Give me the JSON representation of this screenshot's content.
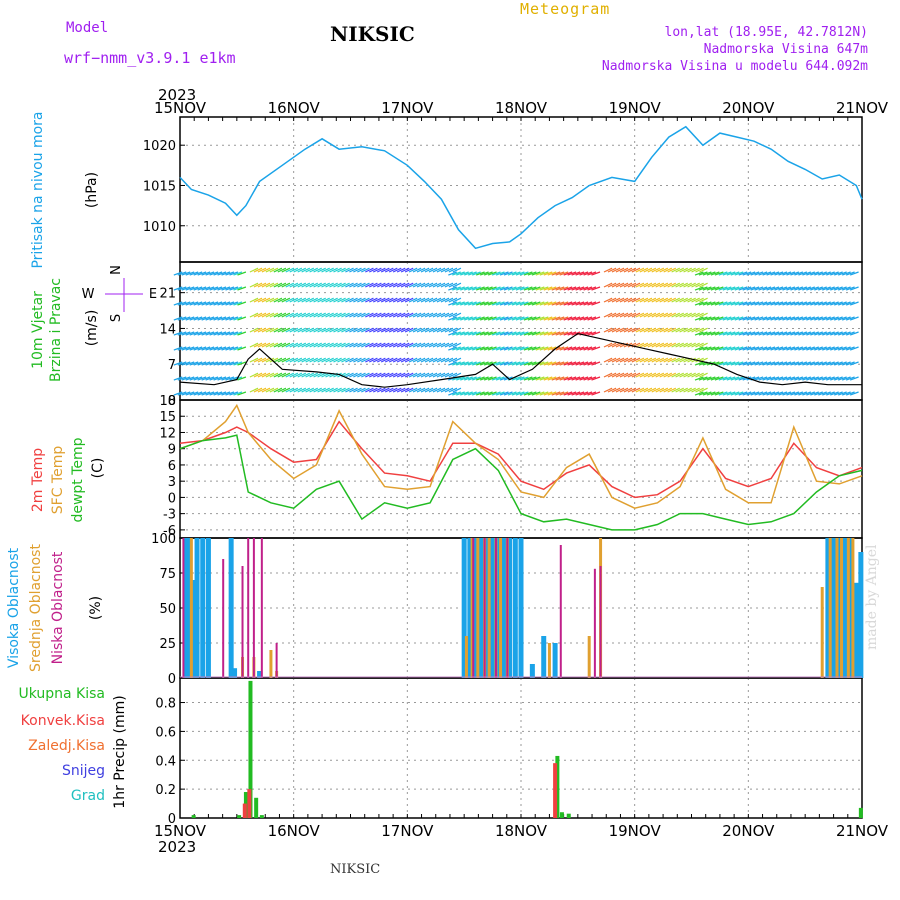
{
  "header": {
    "station": "NIKSIC",
    "model_label": "Model",
    "model_name": "wrf−nmm_v3.9.1  e1km",
    "meteogram_label": "Meteogram",
    "lonlat": "lon,lat (18.95E, 42.7812N)",
    "altitude": "Nadmorska Visina 647m",
    "model_altitude": "Nadmorska Visina u modelu 644.092m",
    "credit": "made by Angel",
    "bottom_station": "NIKSIC"
  },
  "time_axis": {
    "year": "2023",
    "labels": [
      "15NOV",
      "16NOV",
      "17NOV",
      "18NOV",
      "19NOV",
      "20NOV",
      "21NOV"
    ]
  },
  "colors": {
    "pressure": "#1aa3e8",
    "temp2m": "#f04040",
    "sfctemp": "#e0a030",
    "dewpoint": "#22bb22",
    "cloud_high": "#1aa3e8",
    "cloud_mid": "#e0a030",
    "cloud_low": "#c0208a",
    "precip_total": "#22bb22",
    "precip_conv": "#f04040",
    "precip_frozen": "#f07030",
    "precip_snow": "#4040e0",
    "precip_hail": "#20c0c0"
  },
  "chart_data": [
    {
      "type": "line",
      "ylabel": "Pritisak na nivou mora",
      "unit": "(hPa)",
      "yticks": [
        1010,
        1015,
        1020
      ],
      "ylim": [
        1005.5,
        1023.5
      ],
      "x_days": [
        0,
        0.1,
        0.25,
        0.4,
        0.5,
        0.58,
        0.7,
        0.9,
        1.1,
        1.25,
        1.4,
        1.6,
        1.8,
        2.0,
        2.15,
        2.3,
        2.45,
        2.6,
        2.75,
        2.9,
        3.0,
        3.15,
        3.3,
        3.45,
        3.6,
        3.8,
        4.0,
        4.15,
        4.3,
        4.45,
        4.6,
        4.75,
        4.9,
        5.05,
        5.2,
        5.35,
        5.5,
        5.65,
        5.8,
        5.95,
        6.0
      ],
      "values": [
        1016,
        1014.5,
        1013.8,
        1012.8,
        1011.3,
        1012.5,
        1015.5,
        1017.5,
        1019.5,
        1020.8,
        1019.5,
        1019.8,
        1019.3,
        1017.5,
        1015.5,
        1013.3,
        1009.5,
        1007.2,
        1007.8,
        1008,
        1009,
        1011,
        1012.5,
        1013.5,
        1015,
        1016,
        1015.5,
        1018.5,
        1021,
        1022.3,
        1020,
        1021.5,
        1021,
        1020.5,
        1019.5,
        1018,
        1017,
        1015.8,
        1016.3,
        1015,
        1013.3
      ],
      "series": [
        {
          "name": "Pritisak na nivou mora"
        }
      ]
    },
    {
      "type": "line",
      "ylabel": "10m Vjetar Brzina i Pravac",
      "unit": "(m/s)",
      "yticks": [
        0,
        7,
        14,
        21
      ],
      "ylim": [
        0,
        27
      ],
      "compass": [
        "N",
        "S",
        "W",
        "E"
      ],
      "x_days": [
        0,
        0.3,
        0.5,
        0.6,
        0.7,
        0.9,
        1.2,
        1.4,
        1.6,
        1.8,
        2.0,
        2.3,
        2.6,
        2.75,
        2.9,
        3.1,
        3.3,
        3.5,
        3.7,
        3.9,
        4.1,
        4.3,
        4.5,
        4.7,
        4.9,
        5.1,
        5.3,
        5.5,
        5.7,
        5.9,
        6.0
      ],
      "values": [
        3.5,
        3,
        4,
        8,
        10,
        6,
        5.5,
        5,
        3,
        2.5,
        3,
        4,
        5,
        7,
        4,
        6,
        10,
        13,
        12,
        11,
        10,
        9,
        8,
        7,
        5,
        3.5,
        3,
        3.5,
        3,
        3,
        3
      ],
      "series": [
        {
          "name": "10m Vjetar"
        }
      ]
    },
    {
      "type": "line",
      "ylabel": "2m Temp / SFC Temp / dewpt Temp",
      "unit": "(C)",
      "yticks": [
        -6,
        -3,
        0,
        3,
        6,
        9,
        12,
        15,
        18
      ],
      "ylim": [
        -7.5,
        18
      ],
      "x_days": [
        0,
        0.2,
        0.4,
        0.5,
        0.6,
        0.8,
        1.0,
        1.2,
        1.4,
        1.6,
        1.8,
        2.0,
        2.2,
        2.4,
        2.6,
        2.8,
        3.0,
        3.2,
        3.4,
        3.6,
        3.8,
        4.0,
        4.2,
        4.4,
        4.6,
        4.8,
        5.0,
        5.2,
        5.4,
        5.6,
        5.8,
        6.0
      ],
      "series": [
        {
          "name": "2m Temp",
          "values": [
            10,
            10.5,
            12,
            13,
            12,
            9,
            6.5,
            7,
            14,
            9,
            4.5,
            4,
            3,
            10,
            10,
            8,
            3,
            1.5,
            4.5,
            6,
            2,
            0,
            0.5,
            3,
            9,
            3.5,
            2,
            3.5,
            10,
            5.5,
            4,
            5.5
          ]
        },
        {
          "name": "SFC Temp",
          "values": [
            9,
            10.5,
            14,
            17,
            12,
            7,
            3.5,
            6,
            16,
            8,
            2,
            1.5,
            2,
            14,
            10,
            7,
            1,
            0,
            5.5,
            8,
            0,
            -2,
            -1,
            2,
            11,
            1.5,
            -1,
            -1,
            13,
            3,
            2.5,
            4
          ]
        },
        {
          "name": "dewpt Temp",
          "values": [
            9,
            10.5,
            11,
            11.5,
            1,
            -1,
            -2,
            1.5,
            3,
            -4,
            -1,
            -2,
            -1,
            7,
            9,
            5,
            -3,
            -4.5,
            -4,
            -5,
            -6,
            -6,
            -5,
            -3,
            -3,
            -4,
            -5,
            -4.5,
            -3,
            1,
            4,
            5
          ]
        }
      ]
    },
    {
      "type": "bar",
      "ylabel": "Visoka Oblacnost / Srednja Oblacnost / Niska Oblacnost",
      "unit": "(%)",
      "yticks": [
        0,
        25,
        50,
        75,
        100
      ],
      "ylim": [
        0,
        100
      ],
      "series": [
        {
          "name": "Visoka Oblacnost",
          "x_days": [
            0.05,
            0.08,
            0.12,
            0.15,
            0.2,
            0.25,
            0.45,
            0.48,
            0.7,
            2.5,
            2.55,
            2.6,
            2.65,
            2.7,
            2.75,
            2.8,
            2.85,
            2.9,
            2.95,
            3.0,
            3.1,
            3.2,
            3.3,
            5.7,
            5.75,
            5.8,
            5.85,
            5.9,
            5.95,
            5.99
          ],
          "values": [
            100,
            100,
            70,
            100,
            100,
            100,
            100,
            7,
            5,
            100,
            100,
            100,
            100,
            100,
            100,
            100,
            100,
            100,
            100,
            100,
            10,
            30,
            25,
            100,
            100,
            100,
            100,
            100,
            68,
            90
          ]
        },
        {
          "name": "Srednja Oblacnost",
          "x_days": [
            0.1,
            0.55,
            0.65,
            0.8,
            0.85,
            2.52,
            2.57,
            2.62,
            2.68,
            2.72,
            2.78,
            2.82,
            2.88,
            3.25,
            3.6,
            3.7,
            5.65,
            5.72,
            5.78,
            5.82,
            5.88,
            5.92
          ],
          "values": [
            100,
            15,
            15,
            20,
            5,
            30,
            100,
            100,
            100,
            100,
            100,
            100,
            100,
            25,
            30,
            100,
            65,
            100,
            100,
            100,
            100,
            100
          ]
        },
        {
          "name": "Niska Oblacnost",
          "x_days": [
            0.03,
            0.38,
            0.55,
            0.6,
            0.65,
            0.72,
            0.85,
            2.58,
            2.68,
            2.78,
            2.88,
            3.35,
            3.65,
            3.7
          ],
          "values": [
            100,
            85,
            80,
            100,
            100,
            100,
            25,
            100,
            100,
            100,
            100,
            95,
            78,
            80
          ]
        }
      ]
    },
    {
      "type": "bar",
      "ylabel": "1hr Precip",
      "unit": "(mm)",
      "yticks": [
        0,
        0.2,
        0.4,
        0.6,
        0.8
      ],
      "ylim": [
        0,
        0.97
      ],
      "series": [
        {
          "name": "Ukupna Kisa",
          "x_days": [
            0.12,
            0.52,
            0.58,
            0.62,
            0.67,
            0.72,
            3.32,
            3.36,
            3.42,
            5.99
          ],
          "values": [
            0.02,
            0.02,
            0.18,
            0.95,
            0.14,
            0.02,
            0.43,
            0.04,
            0.03,
            0.07
          ]
        },
        {
          "name": "Konvek.Kisa",
          "x_days": [
            0.57,
            0.61,
            3.3
          ],
          "values": [
            0.1,
            0.2,
            0.38
          ]
        },
        {
          "name": "Zaledj.Kisa",
          "x_days": [],
          "values": []
        },
        {
          "name": "Snijeg",
          "x_days": [],
          "values": []
        },
        {
          "name": "Grad",
          "x_days": [],
          "values": []
        }
      ]
    }
  ]
}
